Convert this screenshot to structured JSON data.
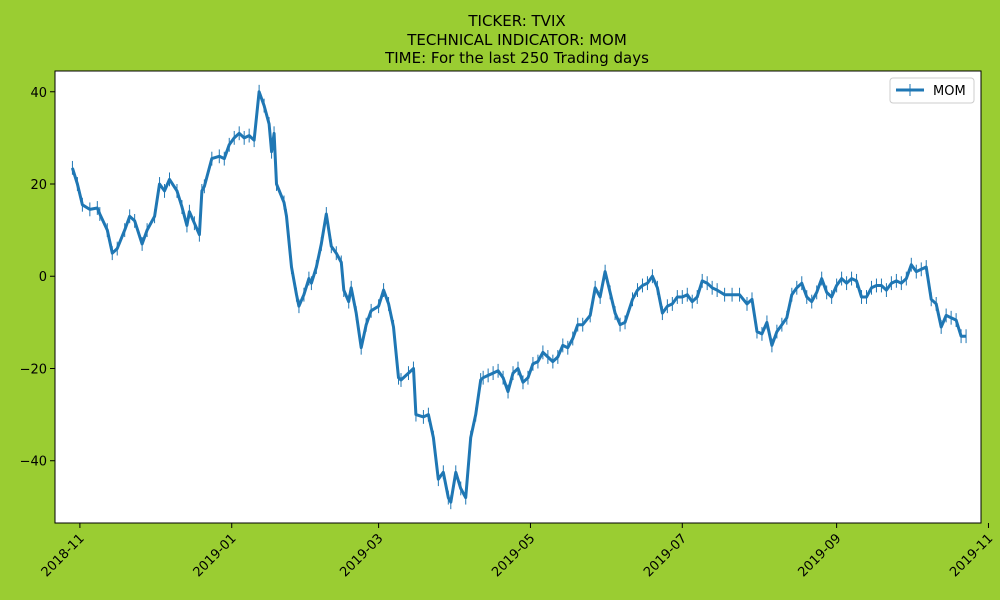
{
  "chart_data": {
    "type": "line",
    "title_lines": [
      "TICKER:  TVIX",
      "TECHNICAL INDICATOR:  MOM",
      "TIME: For the last 250 Trading days"
    ],
    "xlabel": "",
    "ylabel": "",
    "x_ticks": [
      "2018-11",
      "2019-01",
      "2019-03",
      "2019-05",
      "2019-07",
      "2019-09",
      "2019-11"
    ],
    "y_ticks": [
      40,
      20,
      0,
      -20,
      -40
    ],
    "xlim": [
      "2018-10-22",
      "2019-10-29"
    ],
    "ylim": [
      -53.5,
      44.5
    ],
    "grid": false,
    "legend": {
      "position": "top-right",
      "entries": [
        "MOM"
      ]
    },
    "colors": {
      "background": "#9acd32",
      "plot_area": "#ffffff",
      "series": "#1f77b4"
    },
    "series": [
      {
        "name": "MOM",
        "error_bar_half_height": 1.5,
        "points": [
          [
            "2018-10-29",
            23.5
          ],
          [
            "2018-10-31",
            20.0
          ],
          [
            "2018-11-02",
            15.5
          ],
          [
            "2018-11-05",
            14.5
          ],
          [
            "2018-11-08",
            14.8
          ],
          [
            "2018-11-09",
            13.5
          ],
          [
            "2018-11-12",
            10.0
          ],
          [
            "2018-11-14",
            5.0
          ],
          [
            "2018-11-16",
            6.0
          ],
          [
            "2018-11-19",
            10.0
          ],
          [
            "2018-11-21",
            13.0
          ],
          [
            "2018-11-23",
            12.0
          ],
          [
            "2018-11-26",
            7.0
          ],
          [
            "2018-11-28",
            10.0
          ],
          [
            "2018-12-01",
            13.0
          ],
          [
            "2018-12-03",
            20.0
          ],
          [
            "2018-12-05",
            18.5
          ],
          [
            "2018-12-07",
            21.0
          ],
          [
            "2018-12-10",
            18.5
          ],
          [
            "2018-12-12",
            15.0
          ],
          [
            "2018-12-14",
            11.0
          ],
          [
            "2018-12-15",
            14.0
          ],
          [
            "2018-12-17",
            11.5
          ],
          [
            "2018-12-19",
            9.0
          ],
          [
            "2018-12-20",
            18.5
          ],
          [
            "2018-12-21",
            19.5
          ],
          [
            "2018-12-24",
            25.5
          ],
          [
            "2018-12-27",
            26.0
          ],
          [
            "2018-12-29",
            25.5
          ],
          [
            "2018-12-31",
            28.5
          ],
          [
            "2019-01-02",
            30.0
          ],
          [
            "2019-01-04",
            31.0
          ],
          [
            "2019-01-06",
            30.0
          ],
          [
            "2019-01-08",
            30.5
          ],
          [
            "2019-01-10",
            29.5
          ],
          [
            "2019-01-12",
            40.0
          ],
          [
            "2019-01-14",
            37.0
          ],
          [
            "2019-01-16",
            33.0
          ],
          [
            "2019-01-17",
            27.0
          ],
          [
            "2019-01-18",
            31.0
          ],
          [
            "2019-01-19",
            20.0
          ],
          [
            "2019-01-22",
            16.0
          ],
          [
            "2019-01-23",
            13.0
          ],
          [
            "2019-01-25",
            2.0
          ],
          [
            "2019-01-27",
            -4.0
          ],
          [
            "2019-01-28",
            -6.5
          ],
          [
            "2019-01-30",
            -4.0
          ],
          [
            "2019-02-01",
            -0.5
          ],
          [
            "2019-02-02",
            -1.5
          ],
          [
            "2019-02-04",
            2.0
          ],
          [
            "2019-02-06",
            7.0
          ],
          [
            "2019-02-08",
            13.5
          ],
          [
            "2019-02-10",
            6.5
          ],
          [
            "2019-02-12",
            5.0
          ],
          [
            "2019-02-14",
            3.0
          ],
          [
            "2019-02-15",
            -3.0
          ],
          [
            "2019-02-17",
            -5.5
          ],
          [
            "2019-02-18",
            -2.5
          ],
          [
            "2019-02-20",
            -8.0
          ],
          [
            "2019-02-22",
            -15.5
          ],
          [
            "2019-02-24",
            -10.5
          ],
          [
            "2019-02-26",
            -7.5
          ],
          [
            "2019-03-01",
            -6.5
          ],
          [
            "2019-03-03",
            -3.0
          ],
          [
            "2019-03-05",
            -6.0
          ],
          [
            "2019-03-07",
            -11.0
          ],
          [
            "2019-03-09",
            -22.0
          ],
          [
            "2019-03-10",
            -22.5
          ],
          [
            "2019-03-13",
            -21.0
          ],
          [
            "2019-03-15",
            -20.0
          ],
          [
            "2019-03-16",
            -30.0
          ],
          [
            "2019-03-19",
            -30.5
          ],
          [
            "2019-03-21",
            -30.0
          ],
          [
            "2019-03-23",
            -35.0
          ],
          [
            "2019-03-25",
            -44.0
          ],
          [
            "2019-03-27",
            -42.5
          ],
          [
            "2019-03-29",
            -48.0
          ],
          [
            "2019-03-30",
            -49.0
          ],
          [
            "2019-04-01",
            -42.5
          ],
          [
            "2019-04-03",
            -46.0
          ],
          [
            "2019-04-05",
            -48.0
          ],
          [
            "2019-04-07",
            -35.0
          ],
          [
            "2019-04-09",
            -30.0
          ],
          [
            "2019-04-11",
            -22.5
          ],
          [
            "2019-04-12",
            -22.0
          ],
          [
            "2019-04-14",
            -21.5
          ],
          [
            "2019-04-16",
            -21.0
          ],
          [
            "2019-04-18",
            -20.5
          ],
          [
            "2019-04-20",
            -22.0
          ],
          [
            "2019-04-22",
            -25.0
          ],
          [
            "2019-04-24",
            -21.0
          ],
          [
            "2019-04-26",
            -20.0
          ],
          [
            "2019-04-28",
            -23.0
          ],
          [
            "2019-04-30",
            -22.0
          ],
          [
            "2019-05-02",
            -19.0
          ],
          [
            "2019-05-04",
            -18.5
          ],
          [
            "2019-05-06",
            -16.5
          ],
          [
            "2019-05-08",
            -17.5
          ],
          [
            "2019-05-10",
            -18.5
          ],
          [
            "2019-05-12",
            -17.5
          ],
          [
            "2019-05-14",
            -15.0
          ],
          [
            "2019-05-16",
            -15.5
          ],
          [
            "2019-05-18",
            -13.5
          ],
          [
            "2019-05-20",
            -10.5
          ],
          [
            "2019-05-22",
            -10.5
          ],
          [
            "2019-05-25",
            -8.5
          ],
          [
            "2019-05-27",
            -2.5
          ],
          [
            "2019-05-29",
            -4.5
          ],
          [
            "2019-05-31",
            1.0
          ],
          [
            "2019-06-02",
            -3.5
          ],
          [
            "2019-06-04",
            -8.0
          ],
          [
            "2019-06-06",
            -10.5
          ],
          [
            "2019-06-08",
            -10.0
          ],
          [
            "2019-06-11",
            -5.0
          ],
          [
            "2019-06-13",
            -3.0
          ],
          [
            "2019-06-15",
            -2.0
          ],
          [
            "2019-06-17",
            -1.5
          ],
          [
            "2019-06-19",
            0.0
          ],
          [
            "2019-06-21",
            -2.5
          ],
          [
            "2019-06-23",
            -8.0
          ],
          [
            "2019-06-25",
            -6.5
          ],
          [
            "2019-06-27",
            -6.0
          ],
          [
            "2019-06-29",
            -4.5
          ],
          [
            "2019-07-01",
            -4.5
          ],
          [
            "2019-07-03",
            -4.0
          ],
          [
            "2019-07-05",
            -5.5
          ],
          [
            "2019-07-07",
            -4.5
          ],
          [
            "2019-07-09",
            -1.0
          ],
          [
            "2019-07-11",
            -1.5
          ],
          [
            "2019-07-13",
            -2.5
          ],
          [
            "2019-07-15",
            -3.0
          ],
          [
            "2019-07-18",
            -4.0
          ],
          [
            "2019-07-21",
            -4.0
          ],
          [
            "2019-07-24",
            -4.0
          ],
          [
            "2019-07-27",
            -6.0
          ],
          [
            "2019-07-29",
            -5.0
          ],
          [
            "2019-07-31",
            -12.0
          ],
          [
            "2019-08-02",
            -12.5
          ],
          [
            "2019-08-04",
            -10.0
          ],
          [
            "2019-08-06",
            -15.0
          ],
          [
            "2019-08-08",
            -12.0
          ],
          [
            "2019-08-10",
            -10.5
          ],
          [
            "2019-08-12",
            -9.0
          ],
          [
            "2019-08-14",
            -4.0
          ],
          [
            "2019-08-16",
            -2.5
          ],
          [
            "2019-08-18",
            -1.5
          ],
          [
            "2019-08-20",
            -4.5
          ],
          [
            "2019-08-22",
            -5.5
          ],
          [
            "2019-08-24",
            -3.5
          ],
          [
            "2019-08-26",
            -0.5
          ],
          [
            "2019-08-28",
            -3.5
          ],
          [
            "2019-08-30",
            -4.5
          ],
          [
            "2019-09-01",
            -2.0
          ],
          [
            "2019-09-03",
            -0.5
          ],
          [
            "2019-09-05",
            -1.5
          ],
          [
            "2019-09-07",
            -0.5
          ],
          [
            "2019-09-09",
            -1.0
          ],
          [
            "2019-09-11",
            -4.5
          ],
          [
            "2019-09-13",
            -4.5
          ],
          [
            "2019-09-15",
            -2.5
          ],
          [
            "2019-09-17",
            -2.0
          ],
          [
            "2019-09-19",
            -2.0
          ],
          [
            "2019-09-21",
            -3.0
          ],
          [
            "2019-09-23",
            -1.5
          ],
          [
            "2019-09-25",
            -1.0
          ],
          [
            "2019-09-27",
            -1.5
          ],
          [
            "2019-09-29",
            -0.5
          ],
          [
            "2019-10-01",
            2.5
          ],
          [
            "2019-10-03",
            1.0
          ],
          [
            "2019-10-05",
            1.5
          ],
          [
            "2019-10-07",
            2.0
          ],
          [
            "2019-10-09",
            -5.0
          ],
          [
            "2019-10-11",
            -6.0
          ],
          [
            "2019-10-13",
            -11.0
          ],
          [
            "2019-10-15",
            -8.5
          ],
          [
            "2019-10-17",
            -9.0
          ],
          [
            "2019-10-19",
            -9.5
          ],
          [
            "2019-10-21",
            -13.0
          ],
          [
            "2019-10-23",
            -13.0
          ]
        ]
      }
    ]
  }
}
